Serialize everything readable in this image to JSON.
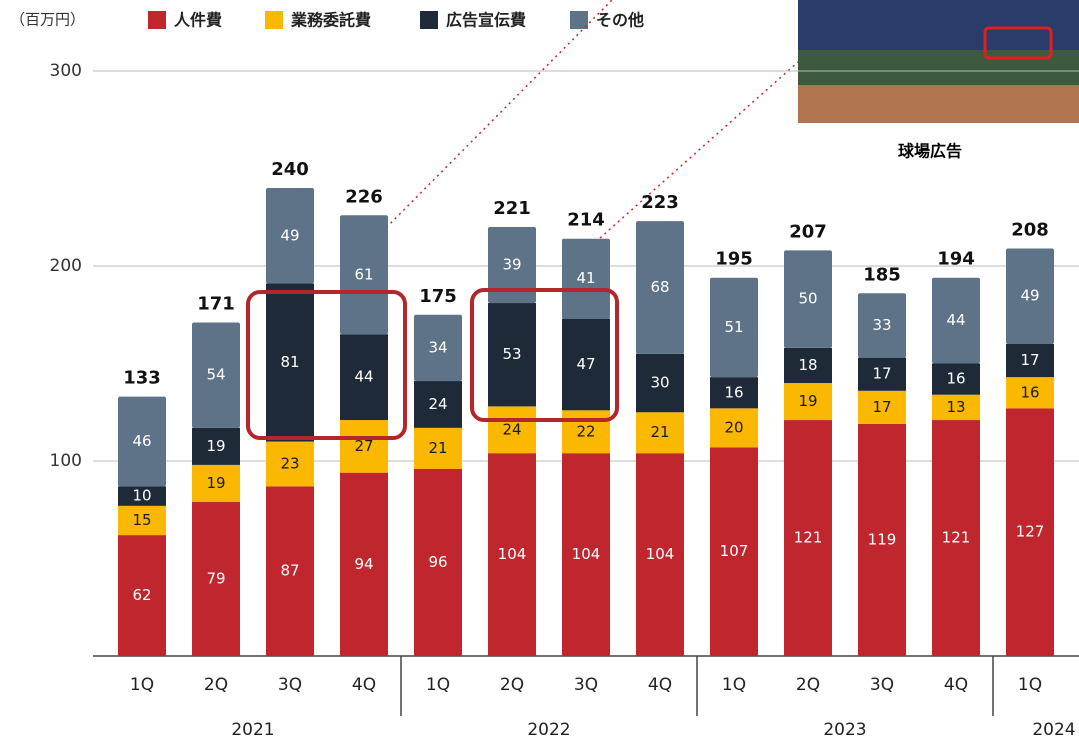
{
  "chart_data": {
    "type": "stacked_bar",
    "unit_label": "（百万円）",
    "groups": [
      {
        "label": "2021",
        "categories": [
          "1Q",
          "2Q",
          "3Q",
          "4Q"
        ]
      },
      {
        "label": "2022",
        "categories": [
          "1Q",
          "2Q",
          "3Q",
          "4Q"
        ]
      },
      {
        "label": "2023",
        "categories": [
          "1Q",
          "2Q",
          "3Q",
          "4Q"
        ]
      },
      {
        "label": "2024",
        "categories": [
          "1Q"
        ]
      }
    ],
    "series": [
      {
        "name": "人件費",
        "color": "#c0262d",
        "label_color": "#ffffff",
        "values": [
          62,
          79,
          87,
          94,
          96,
          104,
          104,
          104,
          107,
          121,
          119,
          121,
          127
        ]
      },
      {
        "name": "業務委託費",
        "color": "#fbb800",
        "label_color": "#1a1a1a",
        "values": [
          15,
          19,
          23,
          27,
          21,
          24,
          22,
          21,
          20,
          19,
          17,
          13,
          16
        ]
      },
      {
        "name": "広告宣伝費",
        "color": "#1e2a38",
        "label_color": "#ffffff",
        "values": [
          10,
          19,
          81,
          44,
          24,
          53,
          47,
          30,
          16,
          18,
          17,
          16,
          17
        ]
      },
      {
        "name": "その他",
        "color": "#5e7387",
        "label_color": "#ffffff",
        "values": [
          46,
          54,
          49,
          61,
          34,
          39,
          41,
          68,
          51,
          50,
          33,
          44,
          49
        ]
      }
    ],
    "totals": [
      133,
      171,
      240,
      226,
      175,
      221,
      214,
      223,
      195,
      207,
      185,
      194,
      208
    ],
    "ylim": [
      0,
      300
    ],
    "yticks": [
      100,
      200,
      300
    ],
    "grid": true,
    "inset_caption": "球場広告"
  }
}
